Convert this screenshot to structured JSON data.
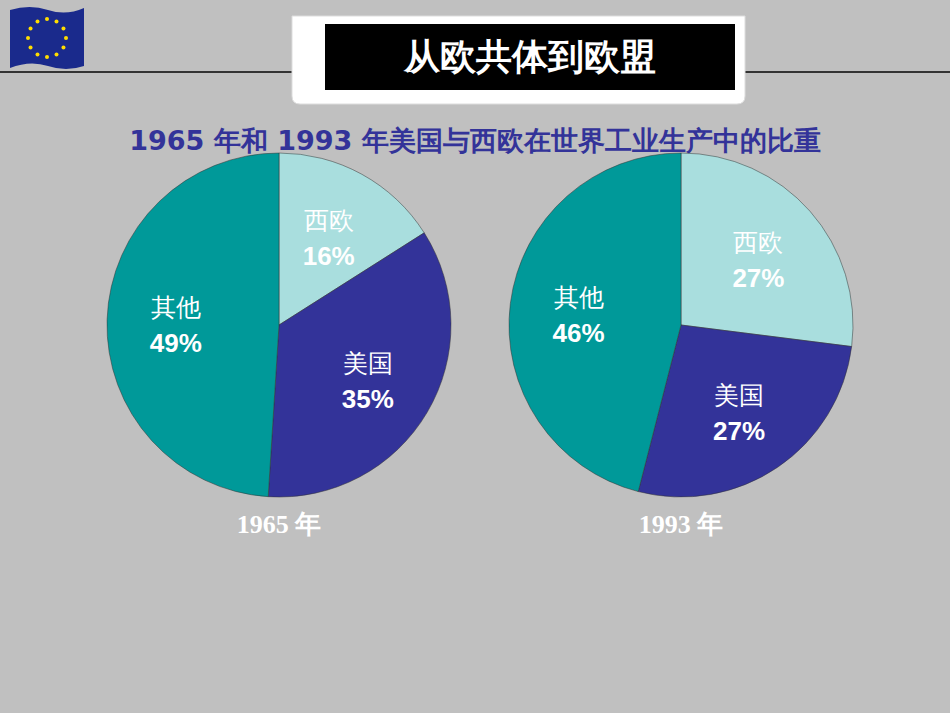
{
  "title": "从欧共体到欧盟",
  "subtitle": "1965 年和 1993 年美国与西欧在世界工业生产中的比重",
  "chart_data": [
    {
      "type": "pie",
      "title": "1965 年",
      "categories": [
        "西欧",
        "美国",
        "其他"
      ],
      "values": [
        16,
        35,
        49
      ],
      "value_labels": [
        "16%",
        "35%",
        "49%"
      ],
      "colors": [
        "#a9dede",
        "#333399",
        "#009999"
      ],
      "data_labels": true
    },
    {
      "type": "pie",
      "title": "1993 年",
      "categories": [
        "西欧",
        "美国",
        "其他"
      ],
      "values": [
        27,
        27,
        46
      ],
      "value_labels": [
        "27%",
        "27%",
        "46%"
      ],
      "colors": [
        "#a9dede",
        "#333399",
        "#009999"
      ],
      "data_labels": true
    }
  ]
}
